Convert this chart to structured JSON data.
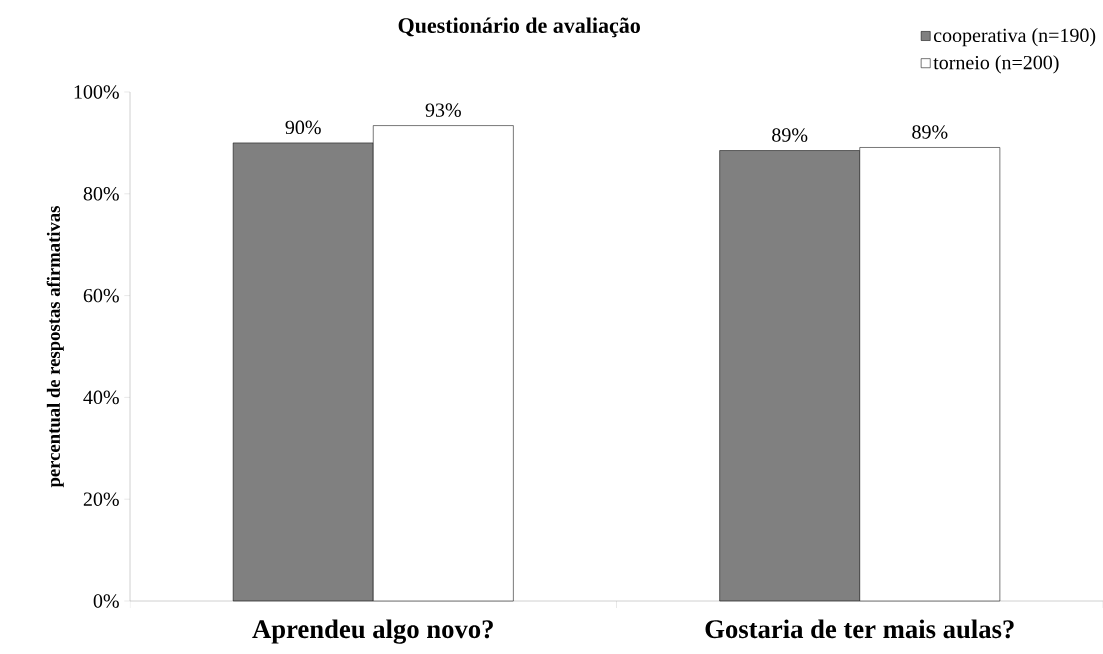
{
  "chart_data": {
    "type": "bar",
    "title": "Questionário de avaliação",
    "ylabel": "percentual de respostas afirmativas",
    "categories": [
      "Aprendeu algo novo?",
      "Gostaria de ter mais aulas?"
    ],
    "series": [
      {
        "name": "cooperativa (n=190)",
        "color": "#808080",
        "values": [
          90.0,
          88.5
        ],
        "value_labels": [
          "90%",
          "89%"
        ]
      },
      {
        "name": "torneio (n=200)",
        "color": "#ffffff",
        "values": [
          93.4,
          89.1
        ],
        "value_labels": [
          "93%",
          "89%"
        ]
      }
    ],
    "ylim": [
      0,
      100
    ],
    "yticks": [
      {
        "value": 0,
        "label": "0%"
      },
      {
        "value": 20,
        "label": "20%"
      },
      {
        "value": 40,
        "label": "40%"
      },
      {
        "value": 60,
        "label": "60%"
      },
      {
        "value": 80,
        "label": "80%"
      },
      {
        "value": 100,
        "label": "100%"
      }
    ],
    "grid": false,
    "legend": "top right"
  }
}
